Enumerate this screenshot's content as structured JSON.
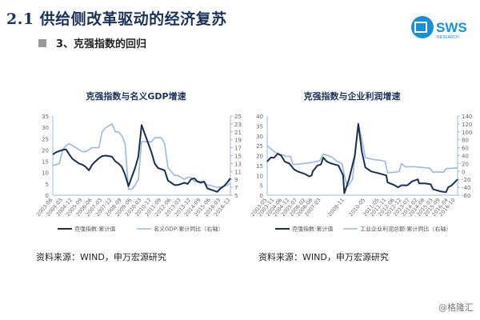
{
  "header": {
    "title": "2.1 供给侧改革驱动的经济复苏",
    "subtitle": "3、克强指数的回归",
    "logo_text": "SWS",
    "logo_subtext": "RESEARCH"
  },
  "colors": {
    "dark": "#1b2f4e",
    "light": "#9db8d8",
    "title": "#1c3258"
  },
  "chart_data": [
    {
      "type": "line",
      "title": "克强指数与名义GDP增速",
      "ylim": [
        0,
        35
      ],
      "yticks": [
        0,
        5,
        10,
        15,
        20,
        25,
        30,
        35
      ],
      "y2lim": [
        5,
        25
      ],
      "y2ticks": [
        5,
        7,
        9,
        11,
        13,
        15,
        17,
        19,
        21,
        23,
        25
      ],
      "xticks": [
        "2003-06",
        "2004-03",
        "2004-12",
        "2005-09",
        "2006-06",
        "2007-03",
        "2007-12",
        "2008-09",
        "2009-06",
        "2010-03",
        "2010-12",
        "2011-09",
        "2012-06",
        "2013-03",
        "2013-12",
        "2014-09",
        "2015-06",
        "2016-03",
        "2016-12"
      ],
      "legend_position": "bottom",
      "series": [
        {
          "name": "克强指数:累计值",
          "axis": "left",
          "color": "#1b2f4e",
          "x": [
            "2003-06",
            "2003-09",
            "2003-12",
            "2004-03",
            "2004-06",
            "2004-09",
            "2004-12",
            "2005-03",
            "2005-06",
            "2005-09",
            "2005-12",
            "2006-03",
            "2006-06",
            "2006-09",
            "2006-12",
            "2007-03",
            "2007-06",
            "2007-09",
            "2007-12",
            "2008-03",
            "2008-06",
            "2008-09",
            "2008-12",
            "2009-03",
            "2009-06",
            "2009-09",
            "2009-12",
            "2010-03",
            "2010-06",
            "2010-09",
            "2010-12",
            "2011-03",
            "2011-06",
            "2011-09",
            "2011-12",
            "2012-03",
            "2012-06",
            "2012-09",
            "2012-12",
            "2013-03",
            "2013-06",
            "2013-09",
            "2013-12",
            "2014-03",
            "2014-06",
            "2014-09",
            "2014-12",
            "2015-03",
            "2015-06",
            "2015-09",
            "2015-12",
            "2016-03",
            "2016-06",
            "2016-09",
            "2016-12"
          ],
          "values": [
            18,
            19,
            19.5,
            20,
            20.3,
            18,
            16,
            15,
            14,
            13.5,
            12.5,
            11,
            13.5,
            15,
            16.3,
            17.3,
            17.5,
            17.3,
            17,
            15,
            14,
            12.5,
            9,
            4,
            8,
            12,
            17,
            31,
            27,
            23,
            19,
            14,
            12,
            11.5,
            11,
            6.5,
            5.5,
            4.5,
            4.5,
            5,
            5.5,
            5,
            7,
            7.5,
            6,
            5.5,
            6,
            3,
            2.5,
            2,
            1.5,
            3,
            4,
            5.5,
            7.5
          ]
        },
        {
          "name": "名义GDP:累计同比（右轴）",
          "axis": "right",
          "color": "#9db8d8",
          "x": [
            "2003-06",
            "2003-09",
            "2003-12",
            "2004-03",
            "2004-06",
            "2004-09",
            "2004-12",
            "2005-03",
            "2005-06",
            "2005-09",
            "2005-12",
            "2006-03",
            "2006-06",
            "2006-09",
            "2006-12",
            "2007-03",
            "2007-06",
            "2007-09",
            "2007-12",
            "2008-03",
            "2008-06",
            "2008-09",
            "2008-12",
            "2009-03",
            "2009-06",
            "2009-09",
            "2009-12",
            "2010-03",
            "2010-06",
            "2010-09",
            "2010-12",
            "2011-03",
            "2011-06",
            "2011-09",
            "2011-12",
            "2012-03",
            "2012-06",
            "2012-09",
            "2012-12",
            "2013-03",
            "2013-06",
            "2013-09",
            "2013-12",
            "2014-03",
            "2014-06",
            "2014-09",
            "2014-12",
            "2015-03",
            "2015-06",
            "2015-09",
            "2015-12",
            "2016-03",
            "2016-06",
            "2016-09",
            "2016-12"
          ],
          "values": [
            12.5,
            12.7,
            13,
            16.5,
            17.5,
            18,
            17.5,
            17,
            16.5,
            16,
            16,
            16.5,
            17,
            17,
            17,
            21,
            22,
            22.5,
            23,
            21,
            21,
            20,
            18,
            6.5,
            6.5,
            7.5,
            9,
            18.5,
            18.5,
            18.5,
            18.5,
            19.5,
            19.5,
            19.5,
            18,
            12,
            11,
            10,
            10,
            9.5,
            9,
            9.5,
            9.5,
            8.5,
            8.5,
            8.5,
            8.5,
            7.5,
            7.5,
            7.2,
            7,
            7,
            7.2,
            7.5,
            8
          ]
        }
      ]
    },
    {
      "type": "line",
      "title": "克强指数与企业利润增速",
      "ylim": [
        0,
        40
      ],
      "yticks": [
        0,
        5,
        10,
        15,
        20,
        25,
        30,
        35,
        40
      ],
      "y2lim": [
        -60,
        140
      ],
      "y2ticks": [
        -60,
        -40,
        -20,
        0,
        20,
        40,
        60,
        80,
        100,
        120,
        140
      ],
      "xticks": [
        "2003-05",
        "2003-11",
        "2004-06",
        "2004-12",
        "2005-07",
        "2006-02",
        "2006-08",
        "2007-03",
        "2008-11",
        "2010-05",
        "2011-05",
        "2011-11",
        "2012-06",
        "2012-12",
        "2013-07",
        "2014-02",
        "2014-08",
        "2015-03",
        "2015-09",
        "2016-04",
        "2016-10"
      ],
      "legend_position": "bottom",
      "series": [
        {
          "name": "克强指数:累计值",
          "axis": "left",
          "color": "#1b2f4e",
          "x": [
            "2003-05",
            "2003-08",
            "2003-11",
            "2004-02",
            "2004-05",
            "2004-08",
            "2004-12",
            "2005-04",
            "2005-07",
            "2005-12",
            "2006-02",
            "2006-05",
            "2006-07",
            "2006-08",
            "2006-12",
            "2007-03",
            "2007-05",
            "2007-08",
            "2007-12",
            "2008-06",
            "2008-10",
            "2008-11",
            "2009-03",
            "2009-08",
            "2009-11",
            "2010-02",
            "2010-05",
            "2010-10",
            "2011-05",
            "2011-11",
            "2011-12",
            "2012-06",
            "2012-09",
            "2012-12",
            "2013-05",
            "2013-09",
            "2014-02",
            "2014-03",
            "2014-08",
            "2015-01",
            "2015-03",
            "2015-09",
            "2016-02",
            "2016-04",
            "2016-07",
            "2016-12"
          ],
          "values": [
            17,
            19,
            19,
            21,
            20,
            17,
            16,
            13,
            12,
            11,
            10.5,
            9.5,
            10,
            12,
            15,
            15.5,
            19,
            17,
            16,
            15,
            10,
            1,
            8,
            20,
            36,
            22,
            14,
            12,
            11,
            10,
            6.5,
            5,
            4,
            5,
            5,
            7,
            8,
            6,
            6,
            5.5,
            3,
            2,
            1.5,
            4,
            5,
            8
          ]
        },
        {
          "name": "工业企业利润总额:累计同比（右轴）",
          "axis": "right",
          "color": "#9db8d8",
          "x": [
            "2003-05",
            "2003-11",
            "2004-02",
            "2004-06",
            "2004-09",
            "2005-01",
            "2005-03",
            "2005-07",
            "2005-12",
            "2006-08",
            "2007-02",
            "2007-05",
            "2007-12",
            "2008-05",
            "2008-09",
            "2008-11",
            "2009-02",
            "2009-06",
            "2009-11",
            "2010-02",
            "2010-05",
            "2010-12",
            "2011-06",
            "2011-10",
            "2011-12",
            "2012-06",
            "2012-10",
            "2012-12",
            "2013-03",
            "2013-12",
            "2014-06",
            "2014-12",
            "2015-03",
            "2015-06",
            "2015-12",
            "2016-02",
            "2016-12"
          ],
          "values": [
            65,
            50,
            45,
            42,
            38,
            38,
            18,
            18,
            20,
            23,
            27,
            44,
            37,
            25,
            20,
            -10,
            -38,
            -20,
            120,
            80,
            35,
            30,
            28,
            25,
            -3,
            -2,
            0,
            20,
            12,
            12,
            10,
            8,
            -2,
            -1,
            -2,
            7,
            9
          ]
        }
      ]
    }
  ],
  "sources": [
    "资料来源：WIND，申万宏源研究",
    "资料来源：WIND，申万宏源研究"
  ],
  "watermark": "@格隆汇"
}
